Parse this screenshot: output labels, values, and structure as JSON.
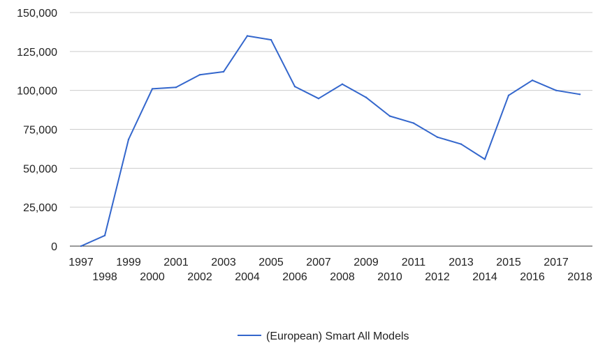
{
  "chart_data": {
    "type": "line",
    "title": "",
    "xlabel": "",
    "ylabel": "",
    "x": [
      "1997",
      "1998",
      "1999",
      "2000",
      "2001",
      "2002",
      "2003",
      "2004",
      "2005",
      "2006",
      "2007",
      "2008",
      "2009",
      "2010",
      "2011",
      "2012",
      "2013",
      "2014",
      "2015",
      "2016",
      "2017",
      "2018"
    ],
    "series": [
      {
        "name": "(European) Smart All Models",
        "color": "#3366cc",
        "values": [
          0,
          6800,
          68500,
          101000,
          102000,
          110000,
          112000,
          135000,
          132500,
          102500,
          94800,
          104000,
          95500,
          83500,
          79000,
          70000,
          65500,
          55800,
          96800,
          106500,
          100000,
          97500
        ]
      }
    ],
    "y_ticks": [
      "0",
      "25,000",
      "50,000",
      "75,000",
      "100,000",
      "125,000",
      "150,000"
    ],
    "ylim": [
      0,
      150000
    ],
    "grid": true,
    "legend": "bottom"
  }
}
